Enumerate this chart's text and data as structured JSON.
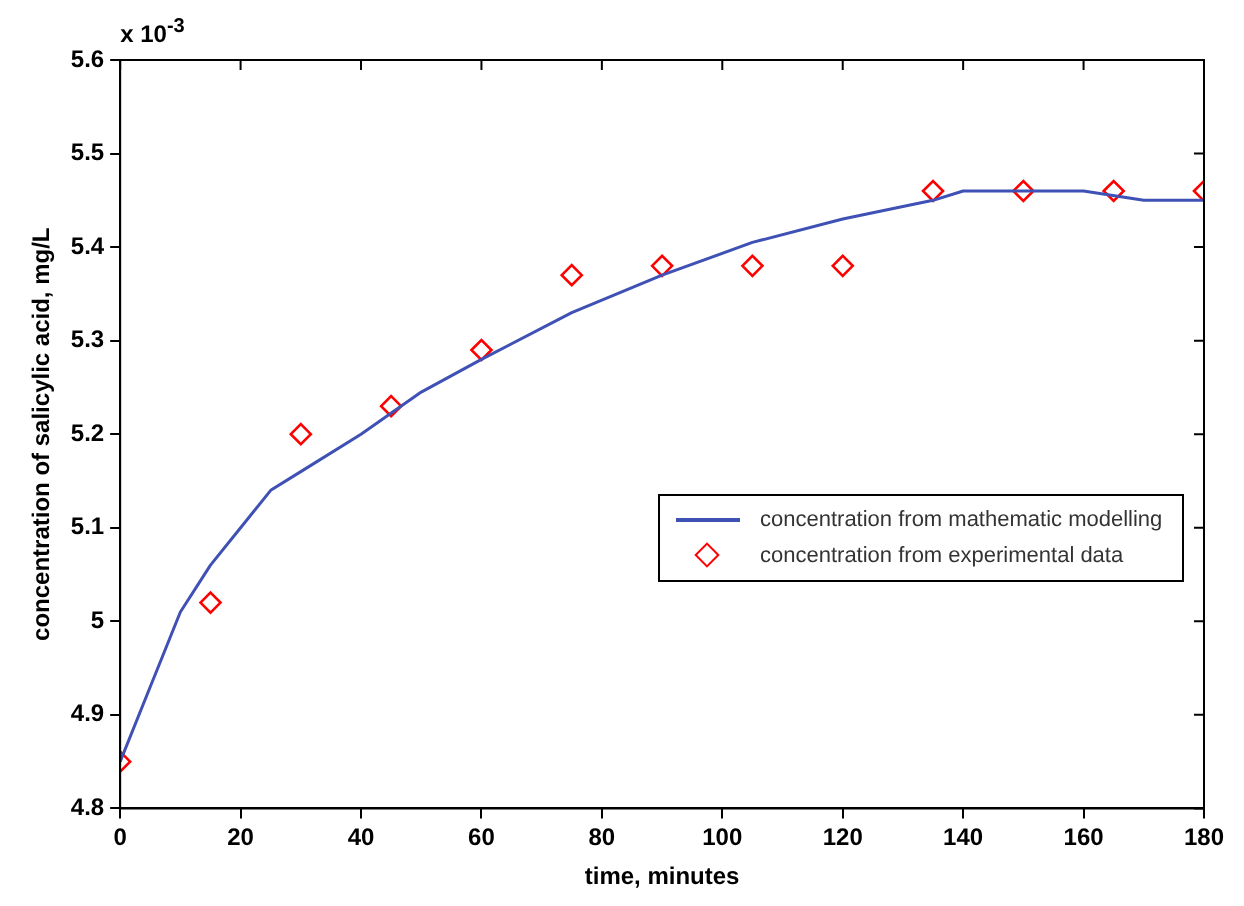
{
  "chart_data": {
    "type": "line",
    "xlabel": "time, minutes",
    "ylabel": "concentration of salicylic acid, mg/L",
    "annotations": [
      "x 10$^{-3}$"
    ],
    "xlim": [
      0,
      180
    ],
    "xticks": [
      0,
      20,
      40,
      60,
      80,
      100,
      120,
      140,
      160,
      180
    ],
    "ylim": [
      4.8,
      5.6
    ],
    "yticks": [
      4.8,
      4.9,
      5,
      5.1,
      5.2,
      5.3,
      5.4,
      5.5,
      5.6
    ],
    "grid": false,
    "legend": "right",
    "series": [
      {
        "name": "concentration from mathematic modelling",
        "color": "#3f51b5",
        "marker": "none",
        "line_style": "solid",
        "x": [
          0,
          5,
          10,
          15,
          20,
          25,
          30,
          40,
          50,
          60,
          75,
          90,
          105,
          120,
          135,
          140,
          160,
          170,
          180
        ],
        "values": [
          4.85,
          4.93,
          5.01,
          5.06,
          5.1,
          5.14,
          5.16,
          5.2,
          5.245,
          5.28,
          5.33,
          5.37,
          5.405,
          5.43,
          5.45,
          5.46,
          5.46,
          5.45,
          5.45
        ]
      },
      {
        "name": "concentration from experimental data",
        "type": "scatter",
        "color": "#ff0000",
        "marker": "diamond",
        "x": [
          0,
          15,
          30,
          45,
          60,
          75,
          90,
          105,
          120,
          135,
          150,
          165,
          180
        ],
        "values": [
          4.85,
          5.02,
          5.2,
          5.23,
          5.29,
          5.37,
          5.38,
          5.38,
          5.38,
          5.46,
          5.46,
          5.46,
          5.46
        ]
      }
    ]
  }
}
